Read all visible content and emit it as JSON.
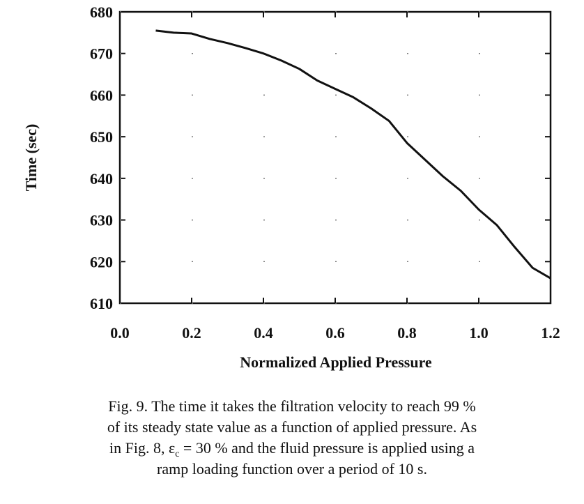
{
  "chart_data": {
    "type": "line",
    "xlabel": "Normalized  Applied  Pressure",
    "ylabel": "Time (sec)",
    "x": [
      0.1,
      0.15,
      0.2,
      0.25,
      0.3,
      0.35,
      0.4,
      0.45,
      0.5,
      0.55,
      0.6,
      0.65,
      0.7,
      0.75,
      0.8,
      0.85,
      0.9,
      0.95,
      1.0,
      1.05,
      1.1,
      1.15,
      1.2
    ],
    "series": [
      {
        "color": "#111111",
        "values": [
          675.5,
          675,
          674.8,
          673.5,
          672.5,
          671.3,
          670,
          668.3,
          666.3,
          663.5,
          661.5,
          659.5,
          656.8,
          653.8,
          648.5,
          644.5,
          640.5,
          637,
          632.5,
          628.8,
          623.5,
          618.5,
          616
        ]
      }
    ],
    "xlim": [
      0,
      1.2
    ],
    "xticks": [
      {
        "value": 0,
        "label": "0.0"
      },
      0.2,
      0.4,
      0.6,
      0.8,
      {
        "value": 1,
        "label": "1.0"
      },
      1.2
    ],
    "ylim": [
      610,
      680
    ],
    "yticks": [
      610,
      620,
      630,
      640,
      650,
      660,
      670,
      680
    ],
    "grid": true
  },
  "caption": [
    "Fig. 9.  The time it takes the filtration velocity to reach 99 %",
    "of its steady state value as a function of applied pressure. As",
    {
      "before": "in Fig. 8, ε",
      "sub": "c",
      "after": " = 30 % and the fluid pressure is applied using a"
    },
    "ramp loading function over a period of 10 s."
  ]
}
